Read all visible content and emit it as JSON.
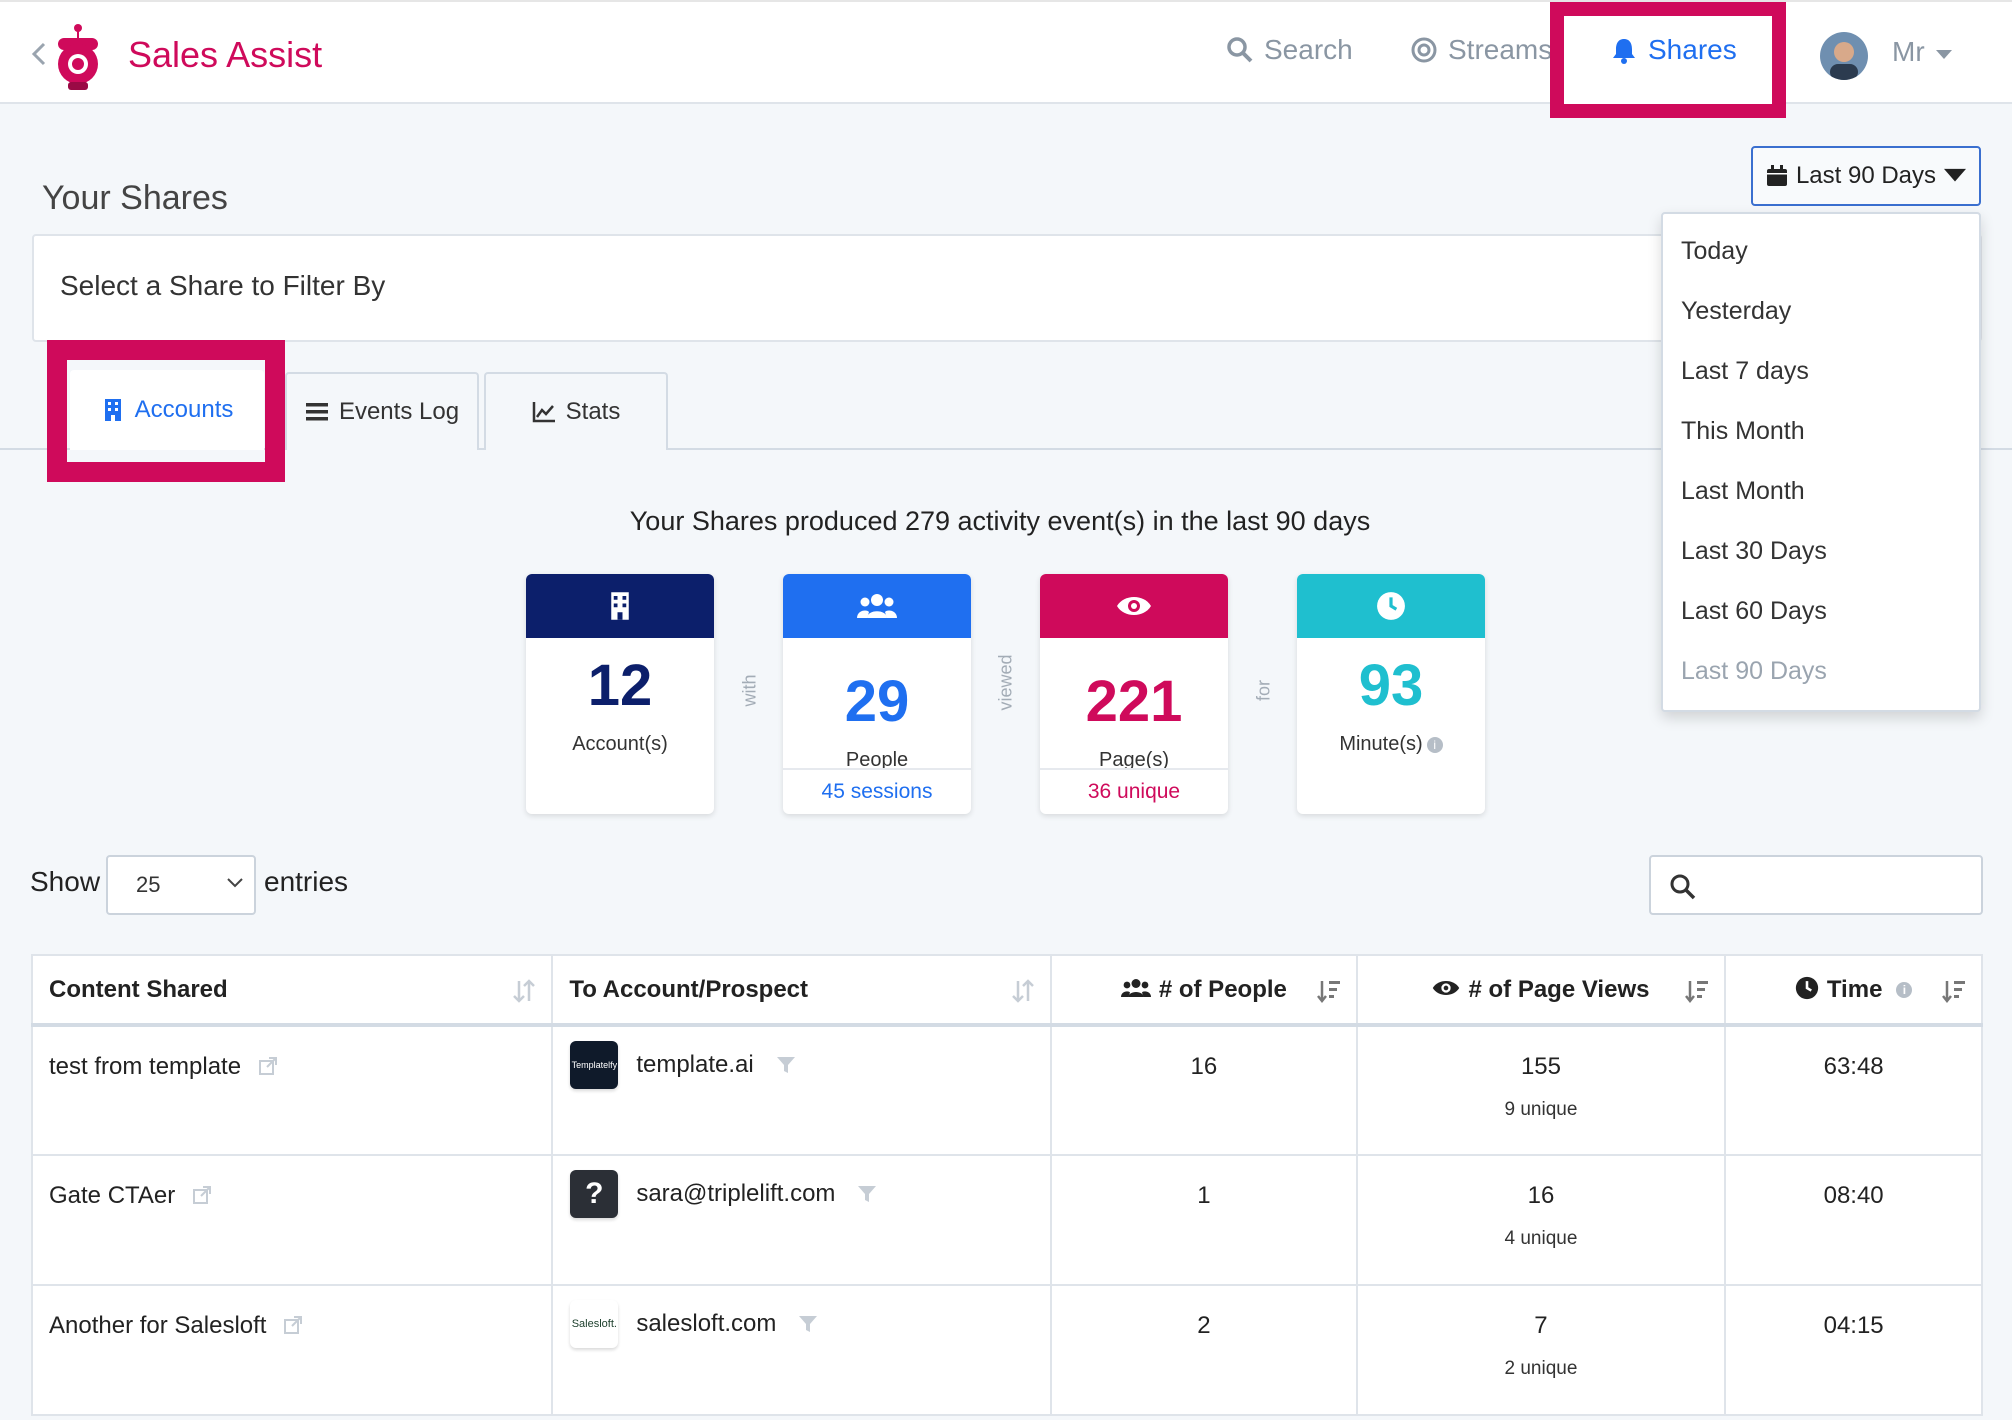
{
  "app": {
    "brand": "Sales Assist"
  },
  "nav": {
    "search": "Search",
    "streams": "Streams",
    "shares": "Shares",
    "user": "Mr"
  },
  "colors": {
    "brand": "#cf0a5b",
    "accent": "#1f6ff0",
    "navy": "#0c1f6b",
    "teal": "#1fbfcf"
  },
  "page": {
    "title": "Your Shares",
    "date_range": "Last 90 Days",
    "filter_label": "Select a Share to Filter By"
  },
  "tabs": [
    {
      "label": "Accounts",
      "icon": "building-icon",
      "active": true
    },
    {
      "label": "Events Log",
      "icon": "list-icon",
      "active": false
    },
    {
      "label": "Stats",
      "icon": "line-chart-icon",
      "active": false
    }
  ],
  "summary": {
    "text": "Your Shares produced 279 activity event(s) in the last 90 days",
    "cards": [
      {
        "icon": "building-icon",
        "value": "12",
        "label": "Account(s)",
        "foot": ""
      },
      {
        "icon": "people-icon",
        "value": "29",
        "label": "People",
        "foot": "45 sessions"
      },
      {
        "icon": "eye-icon",
        "value": "221",
        "label": "Page(s)",
        "foot": "36 unique"
      },
      {
        "icon": "clock-icon",
        "value": "93",
        "label": "Minute(s)",
        "foot": ""
      }
    ],
    "connectors": [
      "with",
      "viewed",
      "for"
    ]
  },
  "table_controls": {
    "show": "Show",
    "entries_value": "25",
    "entries": "entries"
  },
  "table": {
    "headers": [
      "Content Shared",
      "To Account/Prospect",
      "# of People",
      "# of Page Views",
      "Time"
    ],
    "rows": [
      {
        "content": "test from template",
        "account": "template.ai",
        "logo": "Templatelfy",
        "people": "16",
        "views": "155",
        "unique": "9 unique",
        "time": "63:48"
      },
      {
        "content": "Gate CTAer",
        "account": "sara@triplelift.com",
        "logo": "?",
        "people": "1",
        "views": "16",
        "unique": "4 unique",
        "time": "08:40"
      },
      {
        "content": "Another for Salesloft",
        "account": "salesloft.com",
        "logo": "Salesloft.",
        "people": "2",
        "views": "7",
        "unique": "2 unique",
        "time": "04:15"
      }
    ]
  },
  "dropdown": {
    "options": [
      "Today",
      "Yesterday",
      "Last 7 days",
      "This Month",
      "Last Month",
      "Last 30 Days",
      "Last 60 Days",
      "Last 90 Days"
    ]
  }
}
